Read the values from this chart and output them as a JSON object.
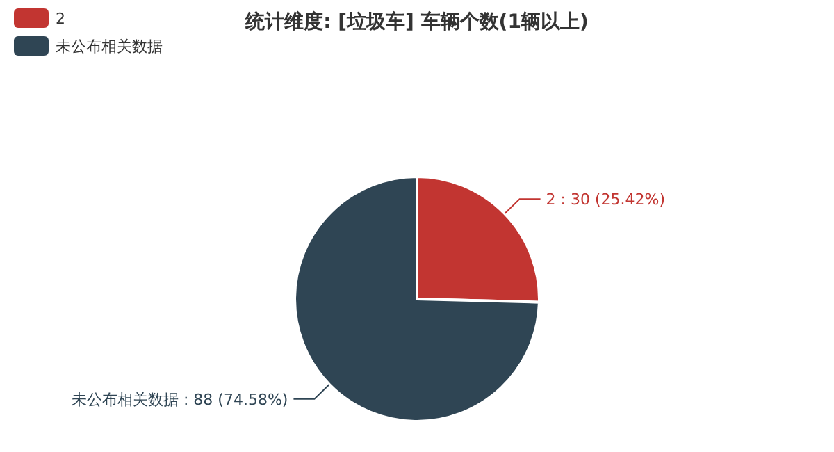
{
  "chart_data": {
    "type": "pie",
    "title": "统计维度: [垃圾车] 车辆个数(1辆以上)",
    "categories": [
      "2",
      "未公布相关数据"
    ],
    "values": [
      30,
      88
    ],
    "colors": [
      "#c23531",
      "#2f4554"
    ],
    "value_labels": [
      "2 : 30 (25.42%)",
      "未公布相关数据 : 88 (74.58%)"
    ],
    "legend": "top left"
  }
}
